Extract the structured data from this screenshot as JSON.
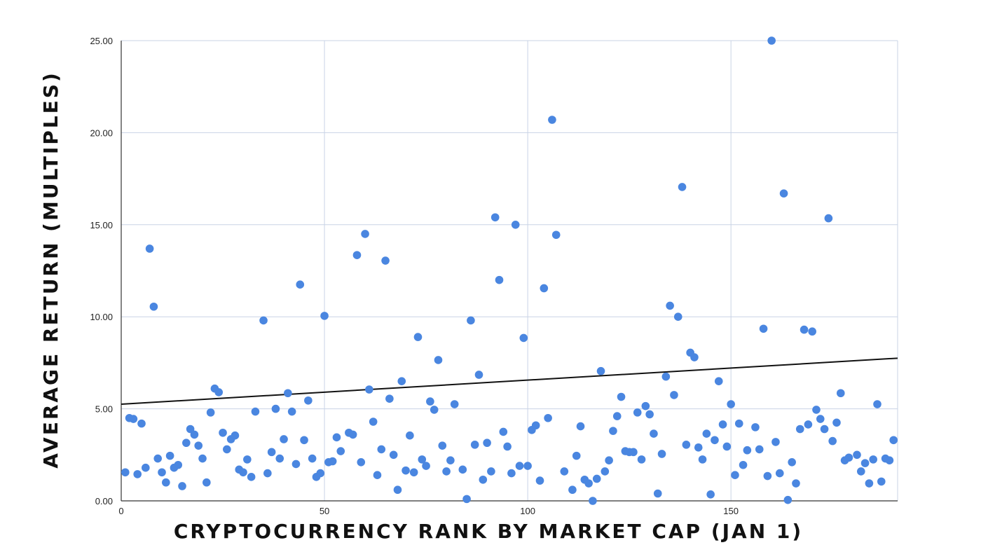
{
  "chart_data": {
    "type": "scatter",
    "title": "",
    "xlabel": "CRYPTOCURRENCY RANK BY MARKET CAP (JAN 1)",
    "ylabel": "AVERAGE RETURN (MULTIPLES)",
    "xlim": [
      0,
      191
    ],
    "ylim": [
      0,
      25
    ],
    "x_ticks": [
      0,
      50,
      100,
      150
    ],
    "y_ticks": [
      0,
      5,
      10,
      15,
      20,
      25
    ],
    "x_tick_labels": [
      "0",
      "50",
      "100",
      "150"
    ],
    "y_tick_labels": [
      "0.00",
      "5.00",
      "10.00",
      "15.00",
      "20.00",
      "25.00"
    ],
    "grid": true,
    "legend": "none",
    "colors": {
      "points": "#4a86e0",
      "trendline": "#111111",
      "grid": "#c9d3e6",
      "axis": "#333333"
    },
    "trendline": {
      "x": [
        0,
        191
      ],
      "y": [
        5.25,
        7.75
      ]
    },
    "series": [
      {
        "points": [
          [
            1,
            1.55
          ],
          [
            2,
            4.5
          ],
          [
            3,
            4.45
          ],
          [
            4,
            1.45
          ],
          [
            5,
            4.2
          ],
          [
            6,
            1.8
          ],
          [
            7,
            13.7
          ],
          [
            8,
            10.55
          ],
          [
            9,
            2.3
          ],
          [
            10,
            1.55
          ],
          [
            11,
            1.0
          ],
          [
            12,
            2.45
          ],
          [
            13,
            1.8
          ],
          [
            14,
            1.95
          ],
          [
            15,
            0.8
          ],
          [
            16,
            3.15
          ],
          [
            17,
            3.9
          ],
          [
            18,
            3.6
          ],
          [
            19,
            3.0
          ],
          [
            20,
            2.3
          ],
          [
            21,
            1.0
          ],
          [
            22,
            4.8
          ],
          [
            23,
            6.1
          ],
          [
            24,
            5.9
          ],
          [
            25,
            3.7
          ],
          [
            26,
            2.8
          ],
          [
            27,
            3.35
          ],
          [
            28,
            3.55
          ],
          [
            29,
            1.7
          ],
          [
            30,
            1.55
          ],
          [
            31,
            2.25
          ],
          [
            32,
            1.3
          ],
          [
            33,
            4.85
          ],
          [
            35,
            9.8
          ],
          [
            36,
            1.5
          ],
          [
            37,
            2.65
          ],
          [
            38,
            5.0
          ],
          [
            39,
            2.3
          ],
          [
            40,
            3.35
          ],
          [
            41,
            5.85
          ],
          [
            42,
            4.85
          ],
          [
            43,
            2.0
          ],
          [
            44,
            11.75
          ],
          [
            45,
            3.3
          ],
          [
            46,
            5.45
          ],
          [
            47,
            2.3
          ],
          [
            48,
            1.3
          ],
          [
            49,
            1.5
          ],
          [
            50,
            10.05
          ],
          [
            51,
            2.1
          ],
          [
            52,
            2.15
          ],
          [
            53,
            3.45
          ],
          [
            54,
            2.7
          ],
          [
            56,
            3.7
          ],
          [
            57,
            3.6
          ],
          [
            58,
            13.35
          ],
          [
            59,
            2.1
          ],
          [
            60,
            14.5
          ],
          [
            61,
            6.05
          ],
          [
            62,
            4.3
          ],
          [
            63,
            1.4
          ],
          [
            64,
            2.8
          ],
          [
            65,
            13.05
          ],
          [
            66,
            5.55
          ],
          [
            67,
            2.5
          ],
          [
            68,
            0.6
          ],
          [
            69,
            6.5
          ],
          [
            70,
            1.65
          ],
          [
            71,
            3.55
          ],
          [
            72,
            1.55
          ],
          [
            73,
            8.9
          ],
          [
            74,
            2.25
          ],
          [
            75,
            1.9
          ],
          [
            76,
            5.4
          ],
          [
            77,
            4.95
          ],
          [
            78,
            7.65
          ],
          [
            79,
            3.0
          ],
          [
            80,
            1.6
          ],
          [
            81,
            2.2
          ],
          [
            82,
            5.25
          ],
          [
            84,
            1.7
          ],
          [
            85,
            0.1
          ],
          [
            86,
            9.8
          ],
          [
            87,
            3.05
          ],
          [
            88,
            6.85
          ],
          [
            89,
            1.15
          ],
          [
            90,
            3.15
          ],
          [
            91,
            1.6
          ],
          [
            92,
            15.4
          ],
          [
            93,
            12.0
          ],
          [
            94,
            3.75
          ],
          [
            95,
            2.95
          ],
          [
            96,
            1.5
          ],
          [
            97,
            15.0
          ],
          [
            98,
            1.9
          ],
          [
            99,
            8.85
          ],
          [
            100,
            1.9
          ],
          [
            101,
            3.85
          ],
          [
            102,
            4.1
          ],
          [
            103,
            1.1
          ],
          [
            104,
            11.55
          ],
          [
            105,
            4.5
          ],
          [
            106,
            20.7
          ],
          [
            107,
            14.45
          ],
          [
            109,
            1.6
          ],
          [
            111,
            0.6
          ],
          [
            112,
            2.45
          ],
          [
            113,
            4.05
          ],
          [
            114,
            1.15
          ],
          [
            115,
            0.95
          ],
          [
            116,
            0.0
          ],
          [
            117,
            1.2
          ],
          [
            118,
            7.05
          ],
          [
            119,
            1.6
          ],
          [
            120,
            2.2
          ],
          [
            121,
            3.8
          ],
          [
            122,
            4.6
          ],
          [
            123,
            5.65
          ],
          [
            124,
            2.7
          ],
          [
            125,
            2.65
          ],
          [
            126,
            2.65
          ],
          [
            127,
            4.8
          ],
          [
            128,
            2.25
          ],
          [
            129,
            5.15
          ],
          [
            130,
            4.7
          ],
          [
            131,
            3.65
          ],
          [
            132,
            0.4
          ],
          [
            133,
            2.55
          ],
          [
            134,
            6.75
          ],
          [
            135,
            10.6
          ],
          [
            136,
            5.75
          ],
          [
            137,
            10.0
          ],
          [
            138,
            17.05
          ],
          [
            139,
            3.05
          ],
          [
            140,
            8.05
          ],
          [
            141,
            7.8
          ],
          [
            142,
            2.9
          ],
          [
            143,
            2.25
          ],
          [
            144,
            3.65
          ],
          [
            145,
            0.35
          ],
          [
            146,
            3.3
          ],
          [
            147,
            6.5
          ],
          [
            148,
            4.15
          ],
          [
            149,
            2.95
          ],
          [
            150,
            5.25
          ],
          [
            151,
            1.4
          ],
          [
            152,
            4.2
          ],
          [
            153,
            1.95
          ],
          [
            154,
            2.75
          ],
          [
            156,
            4.0
          ],
          [
            157,
            2.8
          ],
          [
            158,
            9.35
          ],
          [
            159,
            1.35
          ],
          [
            160,
            25.0
          ],
          [
            161,
            3.2
          ],
          [
            162,
            1.5
          ],
          [
            163,
            16.7
          ],
          [
            164,
            0.05
          ],
          [
            165,
            2.1
          ],
          [
            166,
            0.95
          ],
          [
            167,
            3.9
          ],
          [
            168,
            9.3
          ],
          [
            169,
            4.15
          ],
          [
            170,
            9.2
          ],
          [
            171,
            4.95
          ],
          [
            172,
            4.45
          ],
          [
            173,
            3.9
          ],
          [
            174,
            15.35
          ],
          [
            175,
            3.25
          ],
          [
            176,
            4.25
          ],
          [
            177,
            5.85
          ],
          [
            178,
            2.2
          ],
          [
            179,
            2.35
          ],
          [
            181,
            2.5
          ],
          [
            182,
            1.6
          ],
          [
            183,
            2.05
          ],
          [
            184,
            0.95
          ],
          [
            185,
            2.25
          ],
          [
            186,
            5.25
          ],
          [
            187,
            1.05
          ],
          [
            188,
            2.3
          ],
          [
            189,
            2.2
          ],
          [
            190,
            3.3
          ]
        ]
      }
    ]
  }
}
